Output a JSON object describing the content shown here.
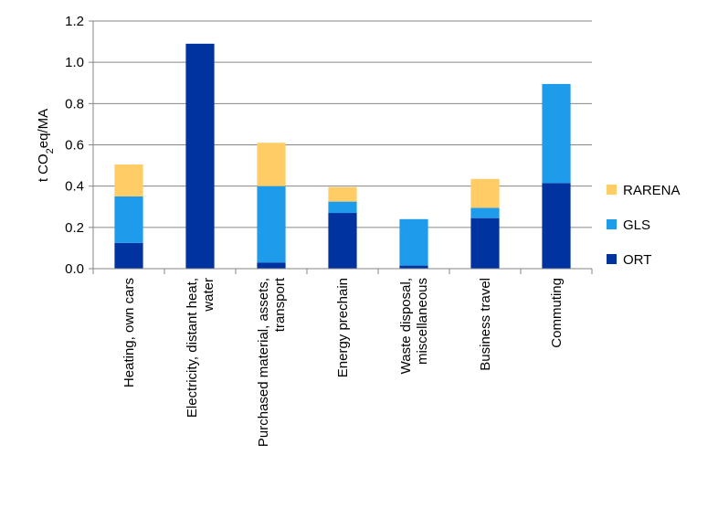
{
  "chart_data": {
    "type": "bar",
    "stacked": true,
    "categories": [
      [
        "Heating,  own cars"
      ],
      [
        "Electricity, distant heat,",
        "water"
      ],
      [
        "Purchased material, assets,",
        "transport"
      ],
      [
        "Energy prechain"
      ],
      [
        "Waste disposal,",
        "miscellaneous"
      ],
      [
        "Business travel"
      ],
      [
        "Commuting"
      ]
    ],
    "series": [
      {
        "name": "ORT",
        "color": "#0033A0",
        "values": [
          0.125,
          1.09,
          0.03,
          0.27,
          0.015,
          0.245,
          0.415
        ]
      },
      {
        "name": "GLS",
        "color": "#1E9BEB",
        "values": [
          0.225,
          0.0,
          0.37,
          0.055,
          0.225,
          0.05,
          0.48
        ]
      },
      {
        "name": "RARENA",
        "color": "#FFCC66",
        "values": [
          0.155,
          0.0,
          0.21,
          0.07,
          0.0,
          0.14,
          0.0
        ]
      }
    ],
    "ylabel_parts": [
      "t CO",
      "2",
      "eq/MA"
    ],
    "xlabel": "",
    "ylim": [
      0,
      1.2
    ],
    "yticks": [
      "0.0",
      "0.2",
      "0.4",
      "0.6",
      "0.8",
      "1.0",
      "1.2"
    ],
    "grid": true,
    "legend_position": "right",
    "legend_order": [
      "RARENA",
      "GLS",
      "ORT"
    ],
    "colors": {
      "grid": "#868686",
      "axis": "#868686"
    }
  }
}
